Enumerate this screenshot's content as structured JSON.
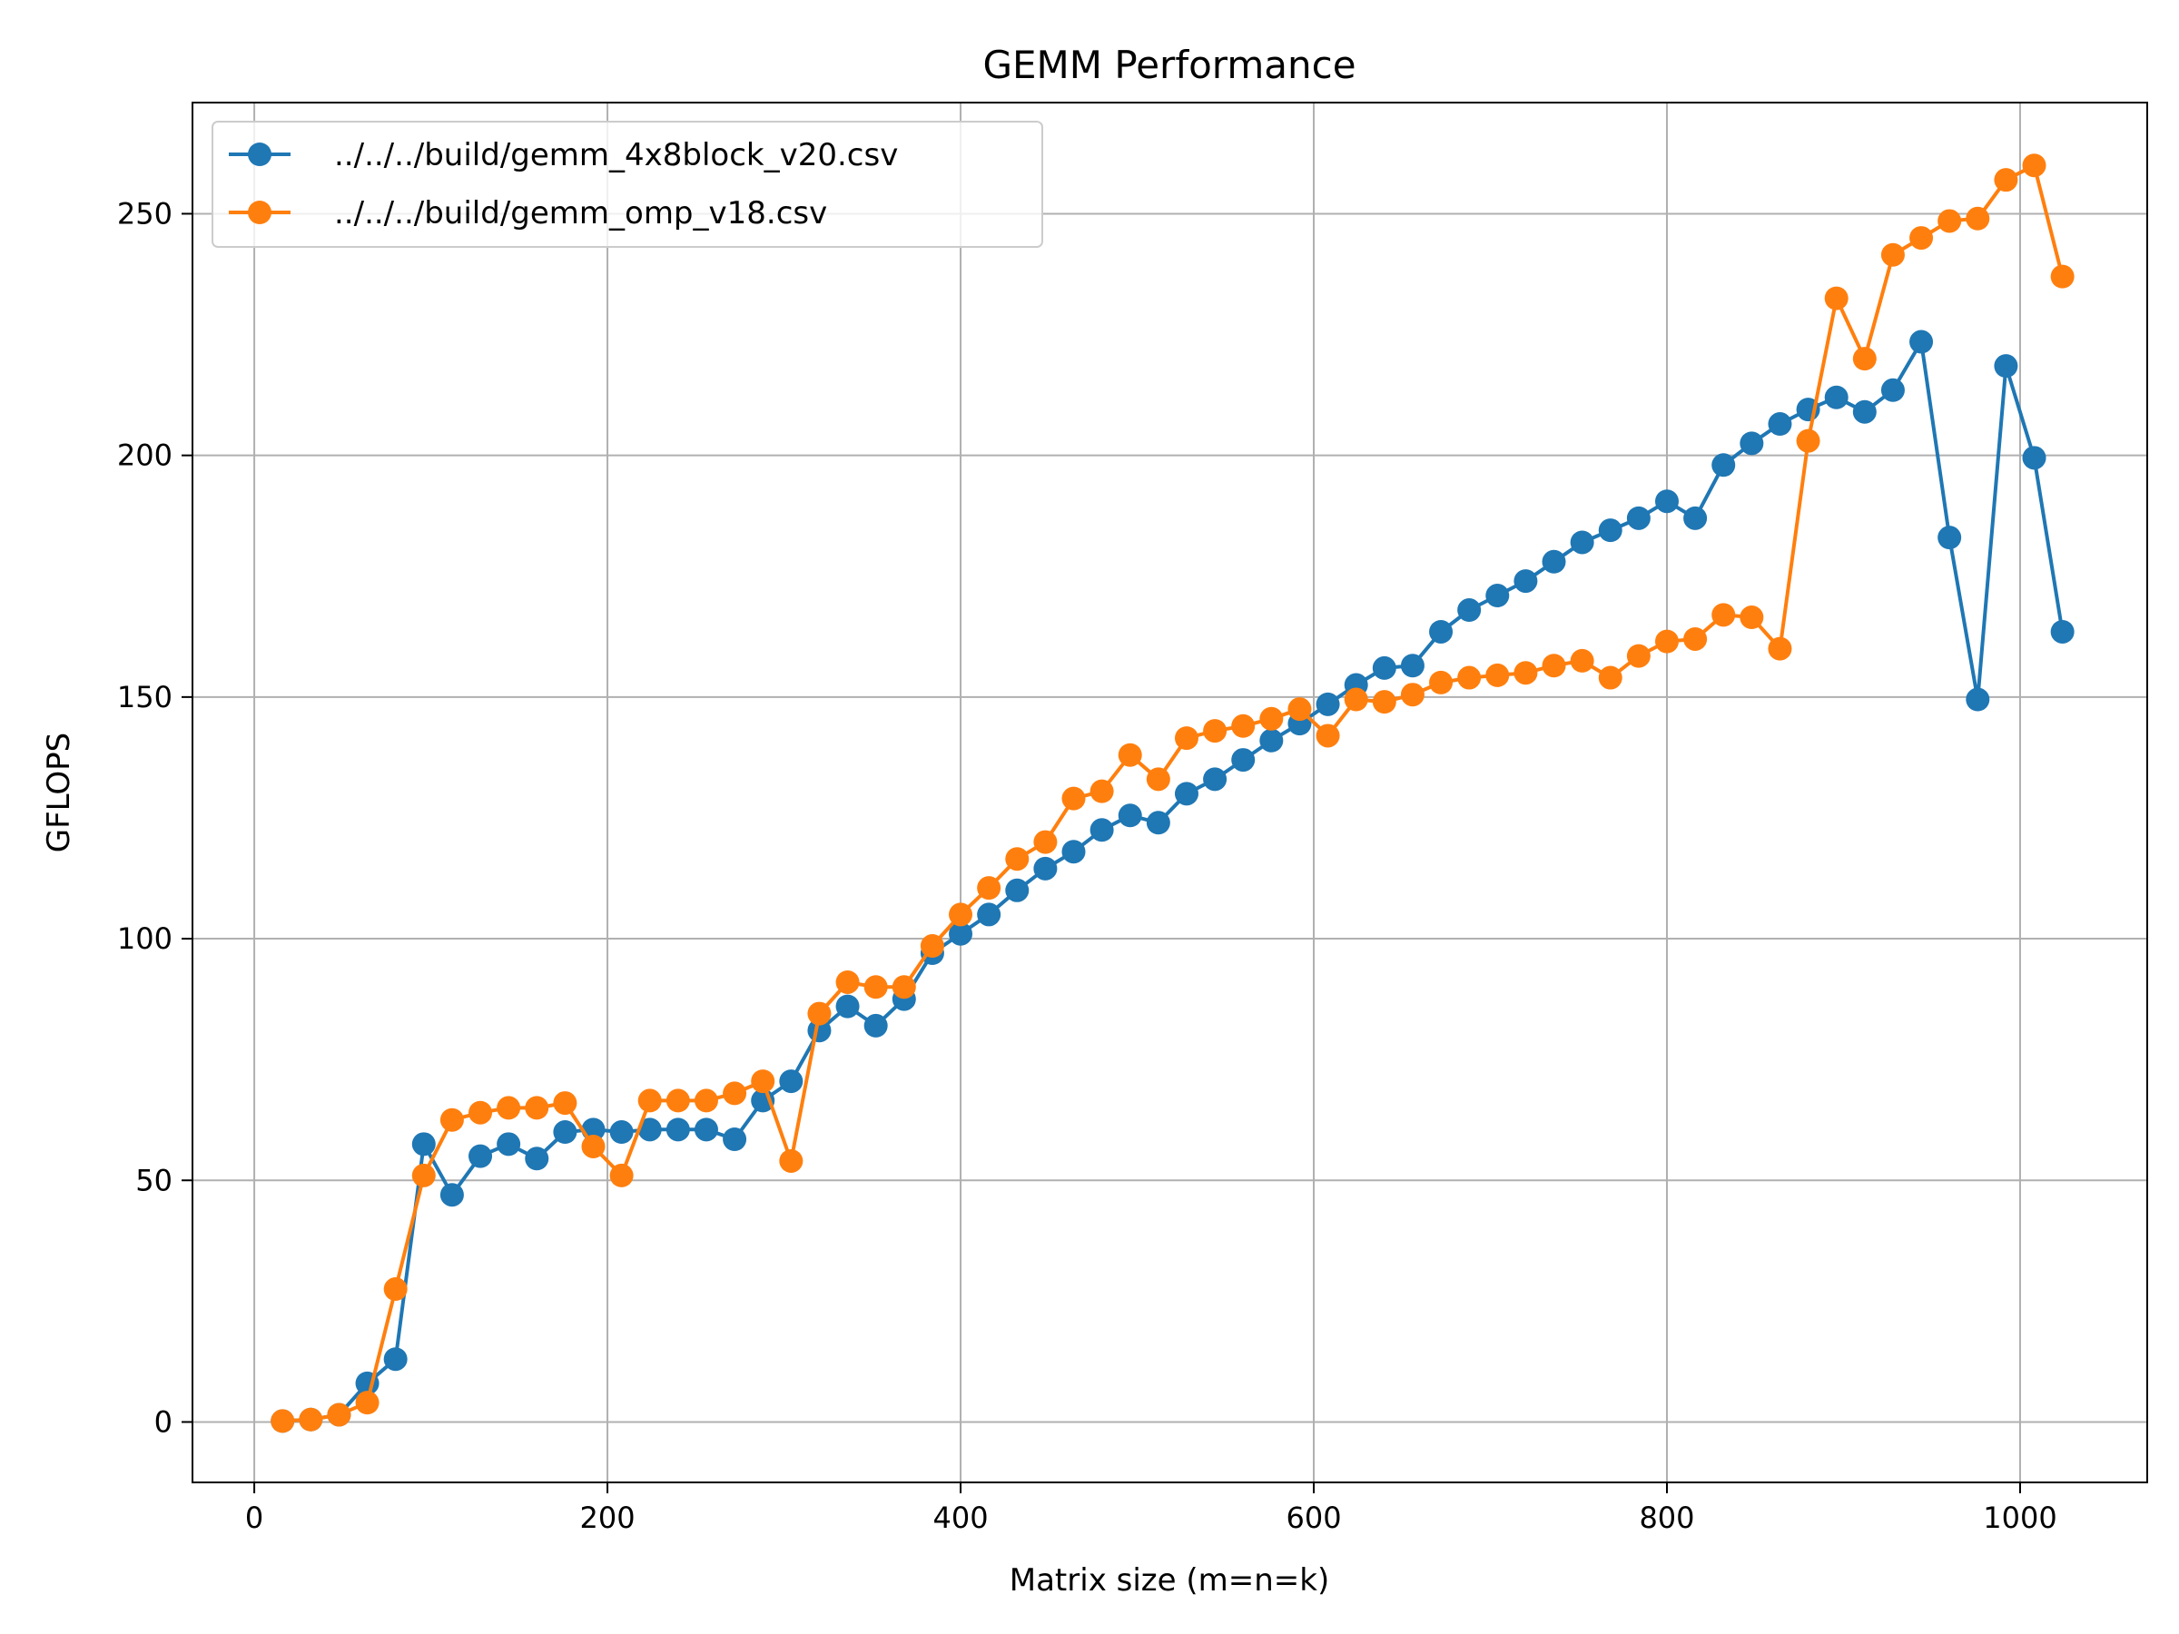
{
  "chart_data": {
    "type": "line",
    "title": "GEMM Performance",
    "xlabel": "Matrix size (m=n=k)",
    "ylabel": "GFLOPS",
    "xlim": [
      -35,
      1072
    ],
    "ylim": [
      -12.5,
      273
    ],
    "xticks": [
      0,
      200,
      400,
      600,
      800,
      1000
    ],
    "yticks": [
      0,
      50,
      100,
      150,
      200,
      250
    ],
    "grid": true,
    "legend_position": "upper-left",
    "x": [
      16,
      32,
      48,
      64,
      80,
      96,
      112,
      128,
      144,
      160,
      176,
      192,
      208,
      224,
      240,
      256,
      272,
      288,
      304,
      320,
      336,
      352,
      368,
      384,
      400,
      416,
      432,
      448,
      464,
      480,
      496,
      512,
      528,
      544,
      560,
      576,
      592,
      608,
      624,
      640,
      656,
      672,
      688,
      704,
      720,
      736,
      752,
      768,
      784,
      800,
      816,
      832,
      848,
      864,
      880,
      896,
      912,
      928,
      944,
      960,
      976,
      992,
      1008,
      1024
    ],
    "series": [
      {
        "name": "../../../build/gemm_4x8block_v20.csv",
        "color": "#1f77b4",
        "values": [
          0.2,
          0.5,
          1.5,
          8.0,
          13.0,
          57.5,
          47.0,
          55.0,
          57.5,
          54.5,
          60.0,
          60.5,
          60.0,
          60.5,
          60.5,
          60.5,
          58.5,
          66.5,
          70.5,
          81.0,
          86.0,
          82.0,
          87.5,
          97.0,
          101.0,
          105.0,
          110.0,
          114.5,
          118.0,
          122.5,
          125.5,
          124.0,
          130.0,
          133.0,
          137.0,
          141.0,
          144.5,
          148.5,
          152.5,
          156.0,
          156.5,
          163.5,
          168.0,
          171.0,
          174.0,
          178.0,
          182.0,
          184.5,
          187.0,
          190.5,
          187.0,
          198.0,
          202.5,
          206.5,
          209.5,
          212.0,
          209.0,
          213.5,
          223.5,
          183.0,
          149.5,
          218.5,
          199.5,
          163.5
        ]
      },
      {
        "name": "../../../build/gemm_omp_v18.csv",
        "color": "#ff7f0e",
        "values": [
          0.2,
          0.5,
          1.5,
          4.0,
          27.5,
          51.0,
          62.5,
          64.0,
          65.0,
          65.0,
          66.0,
          57.0,
          51.0,
          66.5,
          66.5,
          66.5,
          68.0,
          70.5,
          54.0,
          84.5,
          91.0,
          90.0,
          90.0,
          98.5,
          105.0,
          110.5,
          116.5,
          120.0,
          129.0,
          130.5,
          138.0,
          133.0,
          141.5,
          143.0,
          144.0,
          145.5,
          147.5,
          142.0,
          149.5,
          149.0,
          150.5,
          153.0,
          154.0,
          154.5,
          155.0,
          156.5,
          157.5,
          154.0,
          158.5,
          161.5,
          162.0,
          167.0,
          166.5,
          160.0,
          203.0,
          232.5,
          220.0,
          241.5,
          245.0,
          248.5,
          249.0,
          257.0,
          260.0,
          237.0
        ]
      }
    ]
  }
}
